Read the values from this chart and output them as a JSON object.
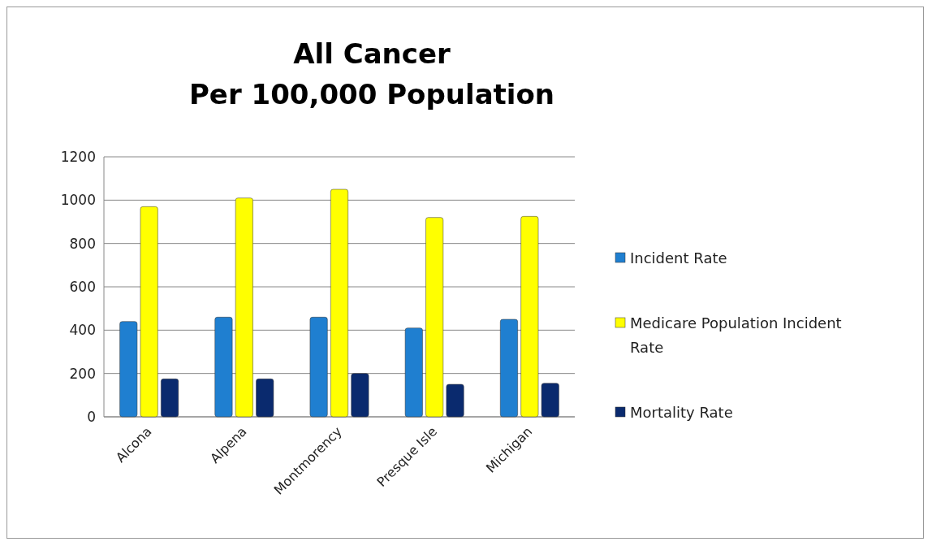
{
  "chart_data": {
    "type": "bar",
    "title": "All Cancer\nPer 100,000 Population",
    "categories": [
      "Alcona",
      "Alpena",
      "Montmorency",
      "Presque Isle",
      "Michigan"
    ],
    "series": [
      {
        "name": "Incident Rate",
        "color": "#1f7fd0",
        "values": [
          440,
          460,
          460,
          410,
          450
        ]
      },
      {
        "name": "Medicare Population Incident Rate",
        "color": "#ffff00",
        "values": [
          970,
          1010,
          1050,
          920,
          925
        ]
      },
      {
        "name": "Mortality Rate",
        "color": "#0a2a6e",
        "values": [
          175,
          175,
          200,
          150,
          155
        ]
      }
    ],
    "ylim": [
      0,
      1200
    ],
    "yticks": [
      0,
      200,
      400,
      600,
      800,
      1000,
      1200
    ],
    "grid": "y",
    "legend": "right"
  }
}
